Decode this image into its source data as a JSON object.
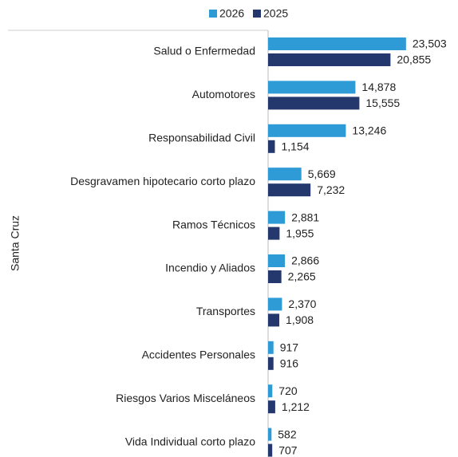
{
  "chart_data": {
    "type": "bar",
    "orientation": "horizontal",
    "y_label": "Santa Cruz",
    "categories": [
      "Salud o Enfermedad",
      "Automotores",
      "Responsabilidad Civil",
      "Desgravamen hipotecario corto plazo",
      "Ramos Técnicos",
      "Incendio y Aliados",
      "Transportes",
      "Accidentes Personales",
      "Riesgos Varios Misceláneos",
      "Vida Individual corto plazo"
    ],
    "series": [
      {
        "name": "2026",
        "color": "#2e9bd6",
        "values": [
          23503,
          14878,
          13246,
          5669,
          2881,
          2866,
          2370,
          917,
          720,
          582
        ],
        "value_labels": [
          "23,503",
          "14,878",
          "13,246",
          "5,669",
          "2,881",
          "2,866",
          "2,370",
          "917",
          "720",
          "582"
        ]
      },
      {
        "name": "2025",
        "color": "#24386e",
        "values": [
          20855,
          15555,
          1154,
          7232,
          1955,
          2265,
          1908,
          916,
          1212,
          707
        ],
        "value_labels": [
          "20,855",
          "15,555",
          "1,154",
          "7,232",
          "1,955",
          "2,265",
          "1,908",
          "916",
          "1,212",
          "707"
        ]
      }
    ],
    "xlim": [
      0,
      31000
    ],
    "legend": "top"
  }
}
